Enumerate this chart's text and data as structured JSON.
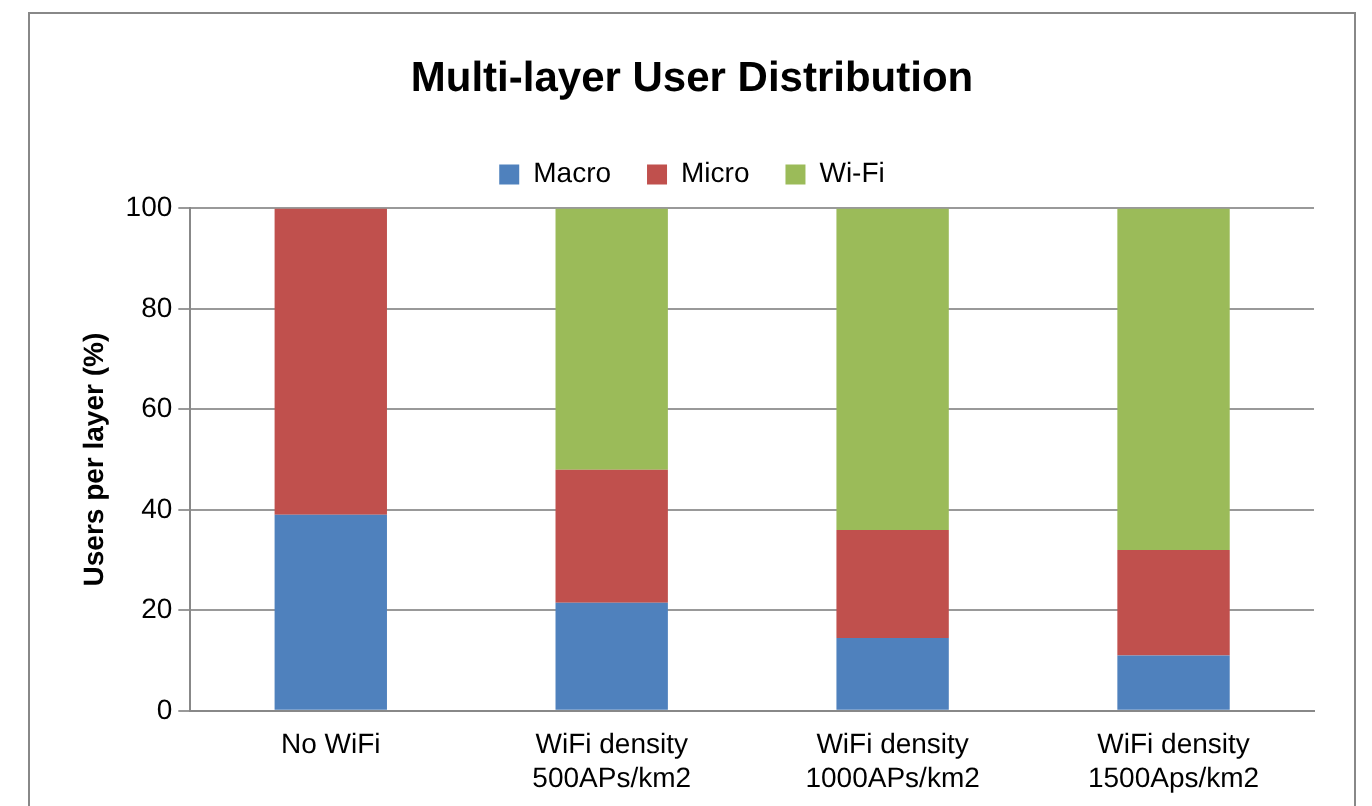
{
  "chart_data": {
    "type": "bar",
    "title": "Multi-layer User Distribution",
    "ylabel": "Users per layer (%)",
    "categories": [
      [
        "No WiFi"
      ],
      [
        "WiFi density",
        "500APs/km2"
      ],
      [
        "WiFi density",
        "1000APs/km2"
      ],
      [
        "WiFi density",
        "1500Aps/km2"
      ]
    ],
    "series": [
      {
        "name": "Macro",
        "color": "#4f81bd",
        "values": [
          39,
          21.5,
          14.5,
          11
        ]
      },
      {
        "name": "Micro",
        "color": "#c0504d",
        "values": [
          61,
          26.5,
          21.5,
          21
        ]
      },
      {
        "name": "Wi-Fi",
        "color": "#9bbb59",
        "values": [
          0,
          52,
          64,
          68
        ]
      }
    ],
    "stacked": true,
    "ylim": [
      0,
      100
    ],
    "yticks": [
      0,
      20,
      40,
      60,
      80,
      100
    ],
    "grid": "y",
    "legend": "top"
  }
}
